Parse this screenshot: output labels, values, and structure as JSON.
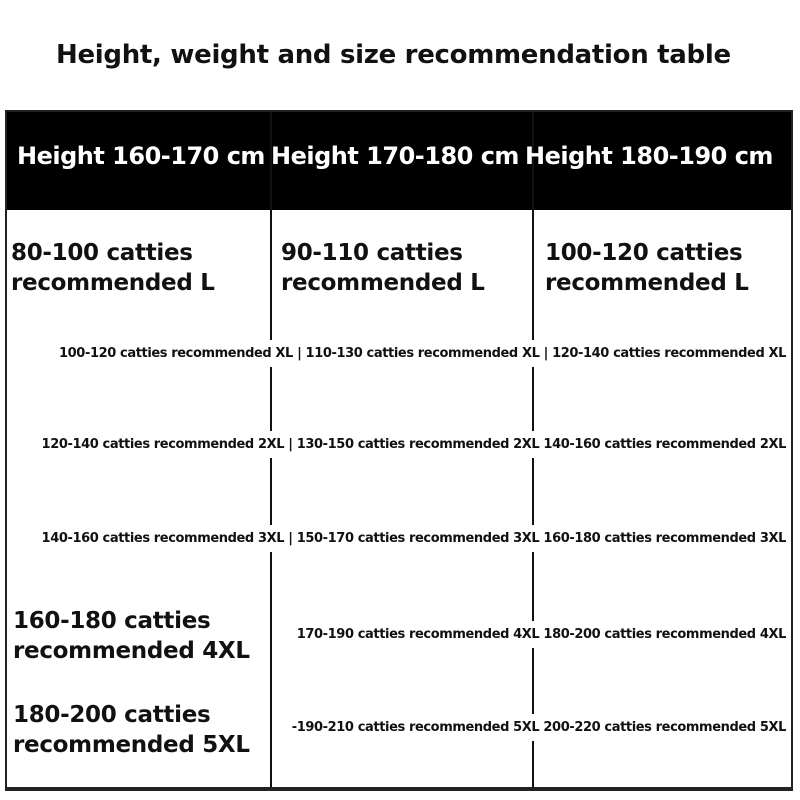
{
  "title": "Height, weight and size recommendation table",
  "headers": [
    "Height 160-170 cm",
    "Height 170-180 cm",
    "Height 180-190 cm"
  ],
  "row_l": [
    "80-100 catties recommended L",
    "90-110 catties recommended L",
    "100-120 catties recommended L"
  ],
  "row_xl": "100-120 catties recommended XL | 110-130 catties recommended XL | 120-140 catties recommended XL",
  "row_2xl": "120-140 catties recommended 2XL | 130-150 catties recommended 2XL 140-160 catties recommended 2XL",
  "row_3xl": "140-160 catties recommended 3XL | 150-170 catties recommended 3XL 160-180 catties recommended 3XL",
  "row_4xl": {
    "col1": "160-180 catties recommended 4XL",
    "rest": "170-190 catties recommended 4XL 180-200 catties recommended 4XL"
  },
  "row_5xl": {
    "col1": "180-200 catties recommended 5XL",
    "rest": "-190-210 catties recommended 5XL 200-220 catties recommended 5XL"
  },
  "colors": {
    "header_bg": "#000000",
    "header_text": "#ffffff",
    "text": "#111111"
  }
}
